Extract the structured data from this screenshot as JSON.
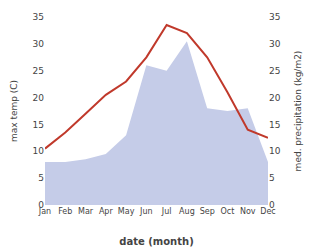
{
  "chart_data": {
    "type": "line",
    "categories": [
      "Jan",
      "Feb",
      "Mar",
      "Apr",
      "May",
      "Jun",
      "Jul",
      "Aug",
      "Sep",
      "Oct",
      "Nov",
      "Dec"
    ],
    "xlabel": "date (month)",
    "ylabel": "max temp (C)",
    "y2label": "med. precipitation (kg/m2)",
    "series": [
      {
        "type": "area",
        "axis": "y2",
        "color": "#c5cce8",
        "values": [
          8.0,
          8.0,
          8.5,
          9.5,
          13.0,
          26.0,
          25.0,
          30.5,
          18.0,
          17.5,
          18.0,
          8.0
        ]
      },
      {
        "type": "line",
        "color": "#c0392b",
        "values": [
          10.5,
          13.5,
          17.0,
          20.5,
          23.0,
          27.5,
          33.5,
          32.0,
          27.5,
          21.0,
          14.0,
          12.5
        ]
      }
    ],
    "ylim": [
      0,
      35
    ],
    "yticks": [
      0,
      5,
      10,
      15,
      20,
      25,
      30,
      35
    ],
    "y2lim": [
      0,
      35
    ],
    "y2ticks": [
      0,
      5,
      10,
      15,
      20,
      25,
      30,
      35
    ],
    "grid": false
  }
}
